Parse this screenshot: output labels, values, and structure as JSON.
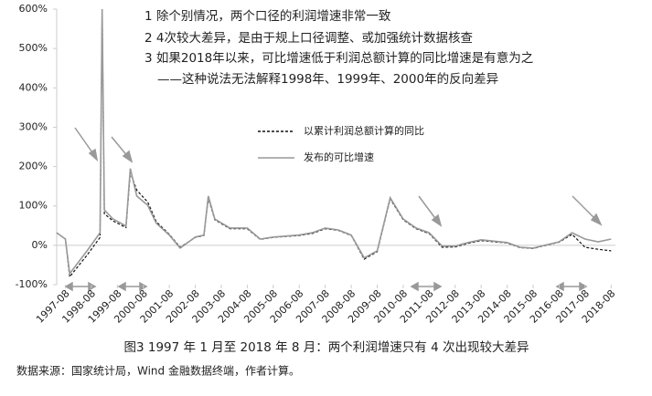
{
  "chart_data": {
    "type": "line",
    "annotations": [
      "1 除个别情况，两个口径的利润增速非常一致",
      "2 4次较大差异，是由于规上口径调整、或加强统计数据核查",
      "3 如果2018年以来，可比增速低于利润总额计算的同比增速是有意为之",
      "——这种说法无法解释1998年、1999年、2000年的反向差异"
    ],
    "caption": "图3 1997 年 1 月至 2018 年 8 月：两个利润增速只有 4 次出现较大差异",
    "source": "数据来源：国家统计局，Wind 金融数据终端，作者计算。",
    "x": [
      "1997-04",
      "1997-08",
      "1997-10",
      "1998-06",
      "1998-12",
      "1999-01",
      "1999-02",
      "1999-06",
      "1999-12",
      "2000-02",
      "2000-05",
      "2000-10",
      "2001-02",
      "2001-08",
      "2002-01",
      "2002-08",
      "2002-12",
      "2003-02",
      "2003-05",
      "2003-12",
      "2004-08",
      "2005-02",
      "2005-08",
      "2006-08",
      "2007-02",
      "2007-08",
      "2008-02",
      "2008-08",
      "2009-02",
      "2009-08",
      "2010-02",
      "2010-08",
      "2011-02",
      "2011-08",
      "2012-02",
      "2012-08",
      "2013-02",
      "2013-08",
      "2014-08",
      "2015-02",
      "2015-08",
      "2016-08",
      "2017-02",
      "2017-08",
      "2018-02",
      "2018-08"
    ],
    "xlim": [
      "1997-04",
      "2018-10"
    ],
    "xticks": [
      "1997-08",
      "1998-08",
      "1999-08",
      "2000-08",
      "2001-08",
      "2002-08",
      "2003-08",
      "2004-08",
      "2005-08",
      "2006-08",
      "2007-08",
      "2008-08",
      "2009-08",
      "2010-08",
      "2011-08",
      "2012-08",
      "2013-08",
      "2014-08",
      "2015-08",
      "2016-08",
      "2017-08",
      "2018-08"
    ],
    "ylim": [
      -100,
      600
    ],
    "yticks": [
      {
        "value": -100,
        "label": "-100%"
      },
      {
        "value": 0,
        "label": "0%"
      },
      {
        "value": 100,
        "label": "100%"
      },
      {
        "value": 200,
        "label": "200%"
      },
      {
        "value": 300,
        "label": "300%"
      },
      {
        "value": 400,
        "label": "400%"
      },
      {
        "value": 500,
        "label": "500%"
      },
      {
        "value": 600,
        "label": "600%"
      }
    ],
    "series": [
      {
        "name": "以累计利润总额计算的同比",
        "color": "#111111",
        "line_style": "dashed",
        "values": [
          32,
          16,
          -80,
          -25,
          20,
          600,
          80,
          62,
          45,
          185,
          140,
          110,
          60,
          28,
          -5,
          20,
          25,
          120,
          65,
          42,
          42,
          15,
          20,
          25,
          30,
          42,
          38,
          25,
          -35,
          -16,
          118,
          65,
          42,
          30,
          -5,
          -4,
          5,
          12,
          6,
          -6,
          -8,
          8,
          28,
          -5,
          -10,
          -14
        ]
      },
      {
        "name": "发布的可比增速",
        "color": "#999999",
        "line_style": "solid",
        "values": [
          32,
          16,
          -72,
          -14,
          32,
          600,
          90,
          67,
          49,
          195,
          125,
          102,
          56,
          26,
          -7,
          21,
          26,
          125,
          67,
          44,
          44,
          16,
          21,
          26,
          32,
          44,
          39,
          26,
          -32,
          -14,
          121,
          67,
          44,
          32,
          -2,
          -2,
          7,
          14,
          7,
          -5,
          -7,
          9,
          32,
          16,
          9,
          16
        ]
      }
    ]
  }
}
